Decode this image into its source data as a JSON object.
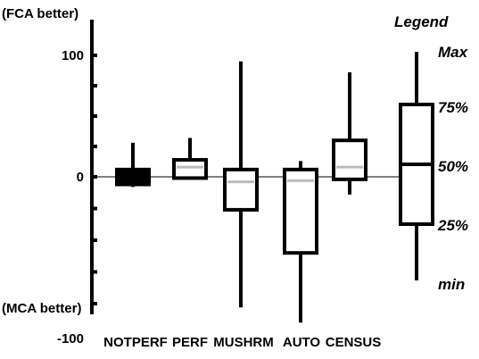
{
  "chart_data": {
    "type": "boxplot",
    "y_axis": {
      "ticks": [
        "100",
        "0",
        "-100"
      ],
      "ylim": [
        -100,
        100
      ],
      "top_note": "(FCA better)",
      "bottom_note": "(MCA better)"
    },
    "categories": [
      "NOTPERF",
      "PERF",
      "MUSHRM",
      "AUTO",
      "CENSUS"
    ],
    "boxes": [
      {
        "min": -8,
        "q1": -6,
        "median": -2,
        "q3": 6,
        "max": 28
      },
      {
        "min": -2,
        "q1": -1,
        "median": 8,
        "q3": 14,
        "max": 32
      },
      {
        "min": -103,
        "q1": -26,
        "median": -4,
        "q3": 6,
        "max": 95
      },
      {
        "min": -115,
        "q1": -60,
        "median": -3,
        "q3": 6,
        "max": 13
      },
      {
        "min": -14,
        "q1": -2,
        "median": 8,
        "q3": 30,
        "max": 86
      }
    ],
    "legend": {
      "title": "Legend",
      "labels": {
        "max": "Max",
        "q3": "75%",
        "median": "50%",
        "q1": "25%",
        "min": "min"
      }
    }
  }
}
